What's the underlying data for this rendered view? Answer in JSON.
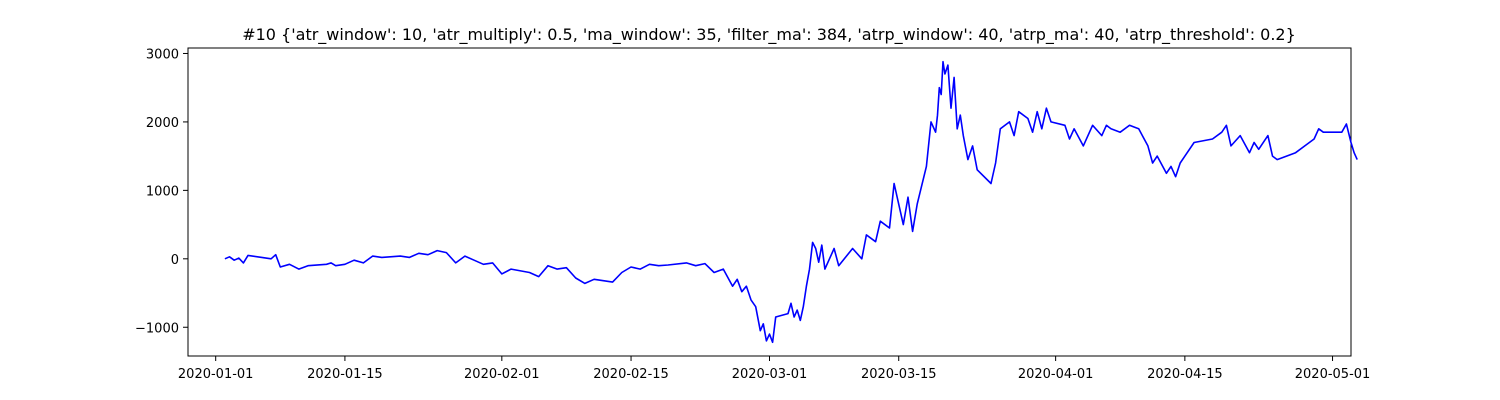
{
  "chart_data": {
    "type": "line",
    "title": "#10 {'atr_window': 10, 'atr_multiply': 0.5, 'ma_window': 35, 'filter_ma': 384, 'atrp_window': 40, 'atrp_ma': 40, 'atrp_threshold': 0.2}",
    "xlabel": "",
    "ylabel": "",
    "x_axis_type": "date",
    "xlim": [
      "2019-12-29",
      "2020-05-03"
    ],
    "ylim": [
      -1420,
      3080
    ],
    "x_ticks": [
      "2020-01-01",
      "2020-01-15",
      "2020-02-01",
      "2020-02-15",
      "2020-03-01",
      "2020-03-15",
      "2020-04-01",
      "2020-04-15",
      "2020-05-01"
    ],
    "y_ticks": [
      -1000,
      0,
      1000,
      2000,
      3000
    ],
    "grid": false,
    "legend": "none",
    "colors": {
      "line": "#0000ff",
      "axes": "#000000",
      "background": "#ffffff"
    },
    "series": [
      {
        "values": [
          [
            "2020-01-02",
            0
          ],
          [
            "2020-01-02",
            30
          ],
          [
            "2020-01-03",
            -20
          ],
          [
            "2020-01-03",
            10
          ],
          [
            "2020-01-04",
            -60
          ],
          [
            "2020-01-04",
            50
          ],
          [
            "2020-01-06",
            20
          ],
          [
            "2020-01-07",
            0
          ],
          [
            "2020-01-07",
            60
          ],
          [
            "2020-01-08",
            -120
          ],
          [
            "2020-01-09",
            -80
          ],
          [
            "2020-01-10",
            -150
          ],
          [
            "2020-01-11",
            -100
          ],
          [
            "2020-01-13",
            -80
          ],
          [
            "2020-01-13",
            -60
          ],
          [
            "2020-01-14",
            -100
          ],
          [
            "2020-01-15",
            -80
          ],
          [
            "2020-01-16",
            -20
          ],
          [
            "2020-01-17",
            -60
          ],
          [
            "2020-01-18",
            40
          ],
          [
            "2020-01-19",
            20
          ],
          [
            "2020-01-21",
            40
          ],
          [
            "2020-01-22",
            20
          ],
          [
            "2020-01-23",
            80
          ],
          [
            "2020-01-24",
            60
          ],
          [
            "2020-01-25",
            120
          ],
          [
            "2020-01-26",
            90
          ],
          [
            "2020-01-27",
            -60
          ],
          [
            "2020-01-28",
            40
          ],
          [
            "2020-01-29",
            -20
          ],
          [
            "2020-01-30",
            -80
          ],
          [
            "2020-01-31",
            -60
          ],
          [
            "2020-02-01",
            -220
          ],
          [
            "2020-02-02",
            -150
          ],
          [
            "2020-02-04",
            -200
          ],
          [
            "2020-02-05",
            -260
          ],
          [
            "2020-02-06",
            -100
          ],
          [
            "2020-02-07",
            -150
          ],
          [
            "2020-02-08",
            -130
          ],
          [
            "2020-02-09",
            -280
          ],
          [
            "2020-02-10",
            -360
          ],
          [
            "2020-02-11",
            -300
          ],
          [
            "2020-02-13",
            -340
          ],
          [
            "2020-02-14",
            -200
          ],
          [
            "2020-02-15",
            -120
          ],
          [
            "2020-02-16",
            -150
          ],
          [
            "2020-02-17",
            -80
          ],
          [
            "2020-02-18",
            -100
          ],
          [
            "2020-02-19",
            -90
          ],
          [
            "2020-02-21",
            -60
          ],
          [
            "2020-02-22",
            -100
          ],
          [
            "2020-02-23",
            -70
          ],
          [
            "2020-02-24",
            -200
          ],
          [
            "2020-02-25",
            -150
          ],
          [
            "2020-02-26",
            -400
          ],
          [
            "2020-02-26",
            -300
          ],
          [
            "2020-02-27",
            -480
          ],
          [
            "2020-02-27",
            -400
          ],
          [
            "2020-02-28",
            -600
          ],
          [
            "2020-02-28",
            -700
          ],
          [
            "2020-02-29",
            -1050
          ],
          [
            "2020-02-29",
            -950
          ],
          [
            "2020-02-29",
            -1200
          ],
          [
            "2020-03-01",
            -1100
          ],
          [
            "2020-03-01",
            -1220
          ],
          [
            "2020-03-01",
            -850
          ],
          [
            "2020-03-03",
            -800
          ],
          [
            "2020-03-03",
            -650
          ],
          [
            "2020-03-03",
            -850
          ],
          [
            "2020-03-04",
            -750
          ],
          [
            "2020-03-04",
            -900
          ],
          [
            "2020-03-04",
            -700
          ],
          [
            "2020-03-05",
            -400
          ],
          [
            "2020-03-05",
            -150
          ],
          [
            "2020-03-05",
            240
          ],
          [
            "2020-03-06",
            150
          ],
          [
            "2020-03-06",
            -50
          ],
          [
            "2020-03-06",
            200
          ],
          [
            "2020-03-07",
            -150
          ],
          [
            "2020-03-08",
            150
          ],
          [
            "2020-03-08",
            -100
          ],
          [
            "2020-03-10",
            150
          ],
          [
            "2020-03-11",
            0
          ],
          [
            "2020-03-11",
            350
          ],
          [
            "2020-03-12",
            300
          ],
          [
            "2020-03-12",
            250
          ],
          [
            "2020-03-13",
            550
          ],
          [
            "2020-03-14",
            450
          ],
          [
            "2020-03-14",
            1100
          ],
          [
            "2020-03-15",
            800
          ],
          [
            "2020-03-15",
            500
          ],
          [
            "2020-03-16",
            900
          ],
          [
            "2020-03-16",
            400
          ],
          [
            "2020-03-17",
            800
          ],
          [
            "2020-03-18",
            1350
          ],
          [
            "2020-03-18",
            2000
          ],
          [
            "2020-03-19",
            1850
          ],
          [
            "2020-03-19",
            2100
          ],
          [
            "2020-03-19",
            2500
          ],
          [
            "2020-03-19",
            2400
          ],
          [
            "2020-03-19",
            2880
          ],
          [
            "2020-03-20",
            2700
          ],
          [
            "2020-03-20",
            2830
          ],
          [
            "2020-03-20",
            2200
          ],
          [
            "2020-03-21",
            2650
          ],
          [
            "2020-03-21",
            1900
          ],
          [
            "2020-03-21",
            2100
          ],
          [
            "2020-03-22",
            1800
          ],
          [
            "2020-03-22",
            1450
          ],
          [
            "2020-03-23",
            1650
          ],
          [
            "2020-03-23",
            1300
          ],
          [
            "2020-03-25",
            1100
          ],
          [
            "2020-03-25",
            1400
          ],
          [
            "2020-03-26",
            1900
          ],
          [
            "2020-03-27",
            2000
          ],
          [
            "2020-03-27",
            1800
          ],
          [
            "2020-03-28",
            2150
          ],
          [
            "2020-03-29",
            2050
          ],
          [
            "2020-03-29",
            1850
          ],
          [
            "2020-03-30",
            2150
          ],
          [
            "2020-03-30",
            1900
          ],
          [
            "2020-03-31",
            2200
          ],
          [
            "2020-03-31",
            2000
          ],
          [
            "2020-04-02",
            1950
          ],
          [
            "2020-04-02",
            1750
          ],
          [
            "2020-04-03",
            1900
          ],
          [
            "2020-04-04",
            1650
          ],
          [
            "2020-04-05",
            1950
          ],
          [
            "2020-04-06",
            1800
          ],
          [
            "2020-04-06",
            1950
          ],
          [
            "2020-04-07",
            1900
          ],
          [
            "2020-04-08",
            1850
          ],
          [
            "2020-04-09",
            1950
          ],
          [
            "2020-04-10",
            1900
          ],
          [
            "2020-04-11",
            1650
          ],
          [
            "2020-04-11",
            1400
          ],
          [
            "2020-04-12",
            1500
          ],
          [
            "2020-04-13",
            1250
          ],
          [
            "2020-04-13",
            1350
          ],
          [
            "2020-04-14",
            1200
          ],
          [
            "2020-04-14",
            1400
          ],
          [
            "2020-04-15",
            1500
          ],
          [
            "2020-04-16",
            1700
          ],
          [
            "2020-04-18",
            1750
          ],
          [
            "2020-04-19",
            1850
          ],
          [
            "2020-04-19",
            1950
          ],
          [
            "2020-04-20",
            1650
          ],
          [
            "2020-04-21",
            1800
          ],
          [
            "2020-04-22",
            1550
          ],
          [
            "2020-04-22",
            1700
          ],
          [
            "2020-04-23",
            1600
          ],
          [
            "2020-04-24",
            1800
          ],
          [
            "2020-04-24",
            1500
          ],
          [
            "2020-04-25",
            1450
          ],
          [
            "2020-04-27",
            1550
          ],
          [
            "2020-04-28",
            1650
          ],
          [
            "2020-04-29",
            1750
          ],
          [
            "2020-04-29",
            1900
          ],
          [
            "2020-04-30",
            1850
          ],
          [
            "2020-05-02",
            1850
          ],
          [
            "2020-05-02",
            1970
          ],
          [
            "2020-05-03",
            1700
          ],
          [
            "2020-05-03",
            1550
          ],
          [
            "2020-05-03",
            1450
          ]
        ]
      }
    ]
  }
}
